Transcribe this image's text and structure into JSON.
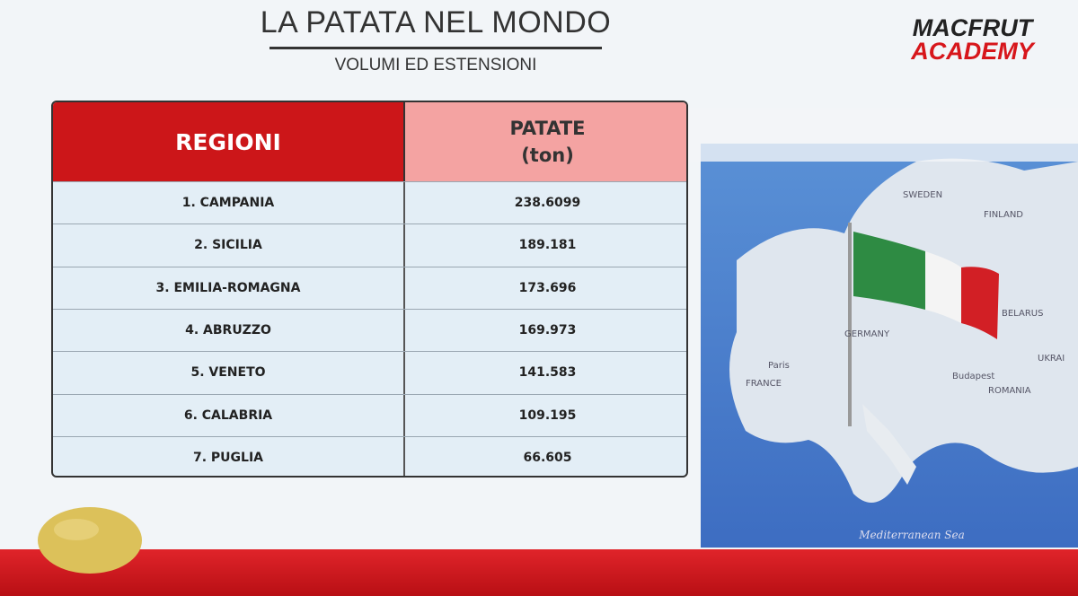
{
  "header": {
    "title": "LA PATATA NEL MONDO",
    "subtitle": "VOLUMI ED ESTENSIONI"
  },
  "logo": {
    "line1": "MACFRUT",
    "line2": "ACADEMY"
  },
  "table": {
    "headers": [
      "REGIONI",
      "PATATE",
      "(ton)"
    ],
    "rows": [
      [
        "1. CAMPANIA",
        "238.6099"
      ],
      [
        "2. SICILIA",
        "189.181"
      ],
      [
        "3. EMILIA-ROMAGNA",
        "173.696"
      ],
      [
        "4. ABRUZZO",
        "169.973"
      ],
      [
        "5. VENETO",
        "141.583"
      ],
      [
        "6. CALABRIA",
        "109.195"
      ],
      [
        "7. PUGLIA",
        "66.605"
      ]
    ]
  },
  "map": {
    "labels": [
      "SWEDEN",
      "FINLAND",
      "BELARUS",
      "GERMANY",
      "FRANCE",
      "ROMANIA",
      "UKRAI",
      "Paris",
      "Budapest",
      "Mediterranean Sea"
    ]
  }
}
